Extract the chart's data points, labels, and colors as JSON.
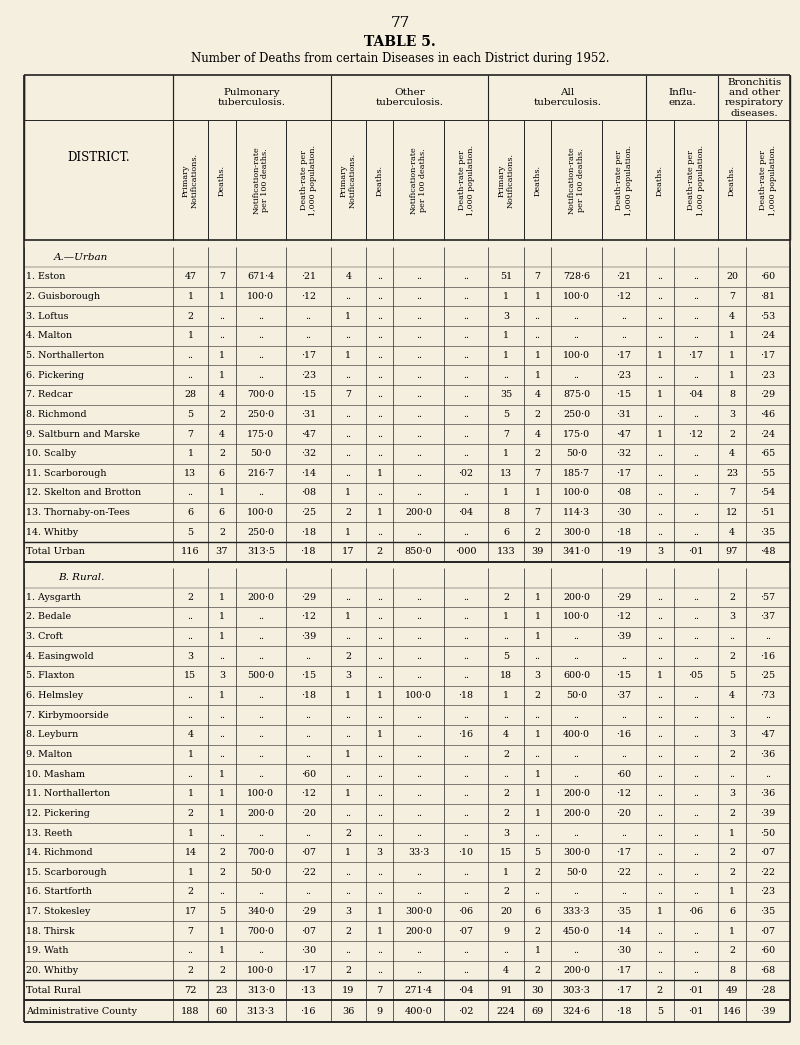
{
  "page_number": "77",
  "title": "TABLE 5.",
  "subtitle": "Number of Deaths from certain Diseases in each District during 1952.",
  "bg_color": "#f5efe0",
  "sections": [
    {
      "section_label": "A.—Urban",
      "rows": [
        [
          "1. Eston",
          "..",
          "..",
          "47",
          "7",
          "671·4",
          "·21",
          "4",
          "..",
          "..",
          "..",
          "51",
          "7",
          "728·6",
          "·21",
          "..",
          "..",
          "20",
          "·60"
        ],
        [
          "2. Guisborough",
          "..",
          "..",
          "1",
          "1",
          "100·0",
          "·12",
          "..",
          "..",
          "..",
          "..",
          "1",
          "1",
          "100·0",
          "·12",
          "..",
          "..",
          "7",
          "·81"
        ],
        [
          "3. Loftus",
          "..",
          "..",
          "2",
          "..",
          "..",
          "..",
          "1",
          "..",
          "..",
          "..",
          "3",
          "..",
          "..",
          "..",
          "..",
          "..",
          "4",
          "·53"
        ],
        [
          "4. Malton",
          "..",
          "..",
          "1",
          "..",
          "..",
          "..",
          "..",
          "..",
          "..",
          "..",
          "1",
          "..",
          "..",
          "..",
          "..",
          "..",
          "1",
          "·24"
        ],
        [
          "5. Northallerton",
          "..",
          "..",
          "..",
          "1",
          "..",
          "·17",
          "1",
          "..",
          "..",
          "..",
          "1",
          "1",
          "100·0",
          "·17",
          "1",
          "·17",
          "1",
          "·17"
        ],
        [
          "6. Pickering",
          "..",
          "..",
          "..",
          "1",
          "..",
          "·23",
          "..",
          "..",
          "..",
          "..",
          "..",
          "1",
          "..",
          "·23",
          "..",
          "..",
          "1",
          "·23"
        ],
        [
          "7. Redcar",
          "..",
          "..",
          "28",
          "4",
          "700·0",
          "·15",
          "7",
          "..",
          "..",
          "..",
          "35",
          "4",
          "875·0",
          "·15",
          "1",
          "·04",
          "8",
          "·29"
        ],
        [
          "8. Richmond",
          "..",
          "..",
          "5",
          "2",
          "250·0",
          "·31",
          "..",
          "..",
          "..",
          "..",
          "5",
          "2",
          "250·0",
          "·31",
          "..",
          "..",
          "3",
          "·46"
        ],
        [
          "9. Saltburn and Marske",
          "..",
          "..",
          "7",
          "4",
          "175·0",
          "·47",
          "..",
          "..",
          "..",
          "..",
          "7",
          "4",
          "175·0",
          "·47",
          "1",
          "·12",
          "2",
          "·24"
        ],
        [
          "10. Scalby",
          "..",
          "..",
          "1",
          "2",
          "50·0",
          "·32",
          "..",
          "..",
          "..",
          "..",
          "1",
          "2",
          "50·0",
          "·32",
          "..",
          "..",
          "4",
          "·65"
        ],
        [
          "11. Scarborough",
          "..",
          "..",
          "13",
          "6",
          "216·7",
          "·14",
          "..",
          "1",
          "..",
          "·02",
          "13",
          "7",
          "185·7",
          "·17",
          "..",
          "..",
          "23",
          "·55"
        ],
        [
          "12. Skelton and Brotton",
          "..",
          "..",
          "..",
          "1",
          "..",
          "·08",
          "1",
          "..",
          "..",
          "..",
          "1",
          "1",
          "100·0",
          "·08",
          "..",
          "..",
          "7",
          "·54"
        ],
        [
          "13. Thornaby-on-Tees",
          "..",
          "..",
          "6",
          "6",
          "100·0",
          "·25",
          "2",
          "1",
          "200·0",
          "·04",
          "8",
          "7",
          "114·3",
          "·30",
          "..",
          "..",
          "12",
          "·51"
        ],
        [
          "14. Whitby",
          "..",
          "..",
          "5",
          "2",
          "250·0",
          "·18",
          "1",
          "..",
          "..",
          "..",
          "6",
          "2",
          "300·0",
          "·18",
          "..",
          "..",
          "4",
          "·35"
        ]
      ],
      "total_row": [
        "Total Urban",
        "..",
        "116",
        "37",
        "313·5",
        "·18",
        "17",
        "2",
        "850·0",
        "·000",
        "133",
        "39",
        "341·0",
        "·19",
        "3",
        "·01",
        "97",
        "·48"
      ]
    },
    {
      "section_label": "B. Rural.",
      "rows": [
        [
          "1. Aysgarth",
          "..",
          "..",
          "2",
          "1",
          "200·0",
          "·29",
          "..",
          "..",
          "..",
          "..",
          "2",
          "1",
          "200·0",
          "·29",
          "..",
          "..",
          "2",
          "·57"
        ],
        [
          "2. Bedale",
          "..",
          "..",
          "..",
          "1",
          "..",
          "·12",
          "1",
          "..",
          "..",
          "..",
          "1",
          "1",
          "100·0",
          "·12",
          "..",
          "..",
          "3",
          "·37"
        ],
        [
          "3. Croft",
          "..",
          "..",
          "..",
          "1",
          "..",
          "·39",
          "..",
          "..",
          "..",
          "..",
          "..",
          "1",
          "..",
          "·39",
          "..",
          "..",
          "..",
          ".."
        ],
        [
          "4. Easingwold",
          "..",
          "..",
          "3",
          "..",
          "..",
          "..",
          "2",
          "..",
          "..",
          "..",
          "5",
          "..",
          "..",
          "..",
          "..",
          "..",
          "2",
          "·16"
        ],
        [
          "5. Flaxton",
          "..",
          "..",
          "15",
          "3",
          "500·0",
          "·15",
          "3",
          "..",
          "..",
          "..",
          "18",
          "3",
          "600·0",
          "·15",
          "1",
          "·05",
          "5",
          "·25"
        ],
        [
          "6. Helmsley",
          "..",
          "..",
          "..",
          "1",
          "..",
          "·18",
          "1",
          "1",
          "100·0",
          "·18",
          "1",
          "2",
          "50·0",
          "·37",
          "..",
          "..",
          "4",
          "·73"
        ],
        [
          "7. Kirbymoorside",
          "..",
          "..",
          "..",
          "..",
          "..",
          "..",
          "..",
          "..",
          "..",
          "..",
          "..",
          "..",
          "..",
          "..",
          "..",
          "..",
          "..",
          ".."
        ],
        [
          "8. Leyburn",
          "..",
          "..",
          "4",
          "..",
          "..",
          "..",
          "..",
          "1",
          "..",
          "·16",
          "4",
          "1",
          "400·0",
          "·16",
          "..",
          "..",
          "3",
          "·47"
        ],
        [
          "9. Malton",
          "..",
          "..",
          "1",
          "..",
          "..",
          "..",
          "1",
          "..",
          "..",
          "..",
          "2",
          "..",
          "..",
          "..",
          "..",
          "..",
          "2",
          "·36"
        ],
        [
          "10. Masham",
          "..",
          "..",
          "..",
          "1",
          "..",
          "·60",
          "..",
          "..",
          "..",
          "..",
          "..",
          "1",
          "..",
          "·60",
          "..",
          "..",
          "..",
          ".."
        ],
        [
          "11. Northallerton",
          "..",
          "..",
          "1",
          "1",
          "100·0",
          "·12",
          "1",
          "..",
          "..",
          "..",
          "2",
          "1",
          "200·0",
          "·12",
          "..",
          "..",
          "3",
          "·36"
        ],
        [
          "12. Pickering",
          "..",
          "..",
          "2",
          "1",
          "200·0",
          "·20",
          "..",
          "..",
          "..",
          "..",
          "2",
          "1",
          "200·0",
          "·20",
          "..",
          "..",
          "2",
          "·39"
        ],
        [
          "13. Reeth",
          "..",
          "..",
          "1",
          "..",
          "..",
          "..",
          "2",
          "..",
          "..",
          "..",
          "3",
          "..",
          "..",
          "..",
          "..",
          "..",
          "1",
          "·50"
        ],
        [
          "14. Richmond",
          "..",
          "..",
          "14",
          "2",
          "700·0",
          "·07",
          "1",
          "3",
          "33·3",
          "·10",
          "15",
          "5",
          "300·0",
          "·17",
          "..",
          "..",
          "2",
          "·07"
        ],
        [
          "15. Scarborough",
          "..",
          "..",
          "1",
          "2",
          "50·0",
          "·22",
          "..",
          "..",
          "..",
          "..",
          "1",
          "2",
          "50·0",
          "·22",
          "..",
          "..",
          "2",
          "·22"
        ],
        [
          "16. Startforth",
          "..",
          "..",
          "2",
          "..",
          "..",
          "..",
          "..",
          "..",
          "..",
          "..",
          "2",
          "..",
          "..",
          "..",
          "..",
          "..",
          "1",
          "·23"
        ],
        [
          "17. Stokesley",
          "..",
          "..",
          "17",
          "5",
          "340·0",
          "·29",
          "3",
          "1",
          "300·0",
          "·06",
          "20",
          "6",
          "333·3",
          "·35",
          "1",
          "·06",
          "6",
          "·35"
        ],
        [
          "18. Thirsk",
          "..",
          "..",
          "7",
          "1",
          "700·0",
          "·07",
          "2",
          "1",
          "200·0",
          "·07",
          "9",
          "2",
          "450·0",
          "·14",
          "..",
          "..",
          "1",
          "·07"
        ],
        [
          "19. Wath",
          "..",
          "..",
          "..",
          "1",
          "..",
          "·30",
          "..",
          "..",
          "..",
          "..",
          "..",
          "1",
          "..",
          "·30",
          "..",
          "..",
          "2",
          "·60"
        ],
        [
          "20. Whitby",
          "..",
          "..",
          "2",
          "2",
          "100·0",
          "·17",
          "2",
          "..",
          "..",
          "..",
          "4",
          "2",
          "200·0",
          "·17",
          "..",
          "..",
          "8",
          "·68"
        ]
      ],
      "total_row": [
        "Total Rural",
        "..",
        "72",
        "23",
        "313·0",
        "·13",
        "19",
        "7",
        "271·4",
        "·04",
        "91",
        "30",
        "303·3",
        "·17",
        "2",
        "·01",
        "49",
        "·28"
      ]
    }
  ],
  "admin_row": [
    "Administrative County",
    "..",
    "188",
    "60",
    "313·3",
    "·16",
    "36",
    "9",
    "400·0",
    "·02",
    "224",
    "69",
    "324·6",
    "·18",
    "5",
    "·01",
    "146",
    "·39"
  ]
}
